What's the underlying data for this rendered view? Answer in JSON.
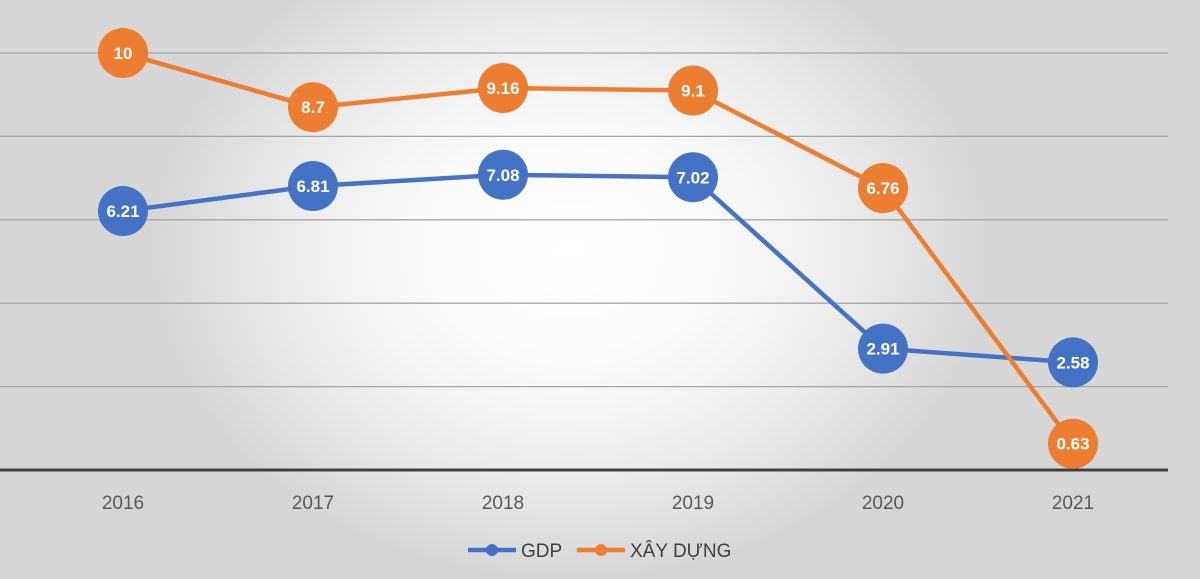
{
  "chart_data": {
    "type": "line",
    "title": "",
    "xlabel": "",
    "ylabel": "",
    "ylim": [
      0,
      10
    ],
    "grid": true,
    "legend_position": "bottom-center",
    "categories": [
      "2016",
      "2017",
      "2018",
      "2019",
      "2020",
      "2021"
    ],
    "series": [
      {
        "name": "GDP",
        "color": "#4472C4",
        "values": [
          6.21,
          6.81,
          7.08,
          7.02,
          2.91,
          2.58
        ],
        "labels": [
          "6.21",
          "6.81",
          "7.08",
          "7.02",
          "2.91",
          "2.58"
        ]
      },
      {
        "name": "XÂY DỰNG",
        "color": "#ED7D31",
        "values": [
          10,
          8.7,
          9.16,
          9.1,
          6.76,
          0.63
        ],
        "labels": [
          "10",
          "8.7",
          "9.16",
          "9.1",
          "6.76",
          "0.63"
        ]
      }
    ],
    "colors": {
      "gridline": "#a6a6a6",
      "axis": "#404040",
      "tick_text": "#595959",
      "label_text": "#ffffff"
    }
  }
}
